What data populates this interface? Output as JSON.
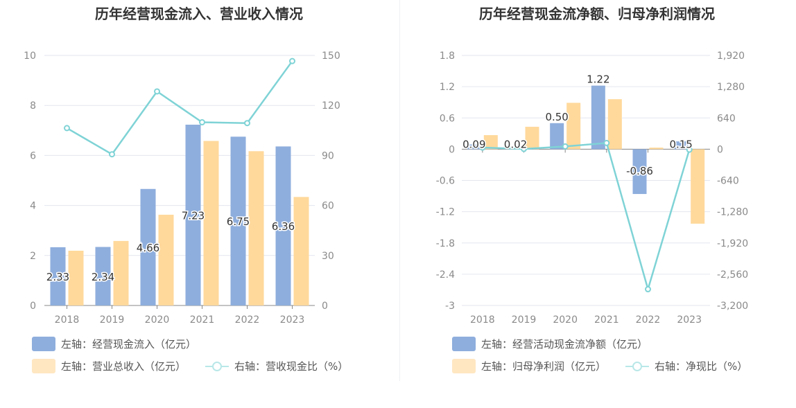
{
  "colors": {
    "bar1": "#8eaedd",
    "bar2": "#ffd99c",
    "line": "#7fd3d6",
    "grid": "#e3e6ef",
    "axis": "#888888",
    "text": "#8a8a8a"
  },
  "left": {
    "title": "历年经营现金流入、营业收入情况",
    "legend": {
      "bar1": "左轴：经营现金流入（亿元）",
      "bar2": "左轴：营业总收入（亿元）",
      "line": "右轴：营收现金比（%）"
    }
  },
  "right": {
    "title": "历年经营现金流净额、归母净利润情况",
    "legend": {
      "bar1": "左轴：经营活动现金流净额（亿元）",
      "bar2": "左轴：归母净利润（亿元）",
      "line": "右轴：净现比（%）"
    }
  },
  "chart_data": [
    {
      "type": "bar",
      "title": "历年经营现金流入、营业收入情况",
      "categories": [
        "2018",
        "2019",
        "2020",
        "2021",
        "2022",
        "2023"
      ],
      "y_left": {
        "min": 0,
        "max": 10,
        "ticks": [
          "0",
          "2",
          "4",
          "6",
          "8",
          "10"
        ]
      },
      "y_right": {
        "min": 0,
        "max": 150,
        "ticks": [
          "0",
          "30",
          "60",
          "90",
          "120",
          "150"
        ]
      },
      "series": [
        {
          "name": "左轴：经营现金流入（亿元）",
          "axis": "left",
          "kind": "bar",
          "values": [
            2.33,
            2.34,
            4.66,
            7.23,
            6.75,
            6.36
          ],
          "labels": [
            "2.33",
            "2.34",
            "4.66",
            "7.23",
            "6.75",
            "6.36"
          ]
        },
        {
          "name": "左轴：营业总收入（亿元）",
          "axis": "left",
          "kind": "bar",
          "values": [
            2.19,
            2.58,
            3.63,
            6.58,
            6.17,
            4.34
          ]
        },
        {
          "name": "右轴：营收现金比（%）",
          "axis": "right",
          "kind": "line",
          "values": [
            106.4,
            90.7,
            128.4,
            109.9,
            109.4,
            146.6
          ]
        }
      ],
      "grid": true,
      "legend_position": "bottom-left"
    },
    {
      "type": "bar",
      "title": "历年经营现金流净额、归母净利润情况",
      "categories": [
        "2018",
        "2019",
        "2020",
        "2021",
        "2022",
        "2023"
      ],
      "y_left": {
        "min": -3,
        "max": 1.8,
        "ticks": [
          "-3",
          "-2.4",
          "-1.8",
          "-1.2",
          "-0.6",
          "0",
          "0.6",
          "1.2",
          "1.8"
        ]
      },
      "y_right": {
        "min": -3200,
        "max": 1920,
        "ticks": [
          "-3,200",
          "-2,560",
          "-1,920",
          "-1,280",
          "-640",
          "0",
          "640",
          "1,280",
          "1,920"
        ]
      },
      "series": [
        {
          "name": "左轴：经营活动现金流净额（亿元）",
          "axis": "left",
          "kind": "bar",
          "values": [
            0.09,
            0.02,
            0.5,
            1.22,
            -0.86,
            0.15
          ],
          "labels": [
            "0.09",
            "0.02",
            "0.50",
            "1.22",
            "-0.86",
            "0.15"
          ]
        },
        {
          "name": "左轴：归母净利润（亿元）",
          "axis": "left",
          "kind": "bar",
          "values": [
            0.27,
            0.43,
            0.89,
            0.96,
            0.03,
            -1.43
          ]
        },
        {
          "name": "右轴：净现比（%）",
          "axis": "right",
          "kind": "line",
          "values": [
            33,
            5,
            56,
            127,
            -2867,
            -10
          ]
        }
      ],
      "grid": true,
      "legend_position": "bottom-left"
    }
  ]
}
